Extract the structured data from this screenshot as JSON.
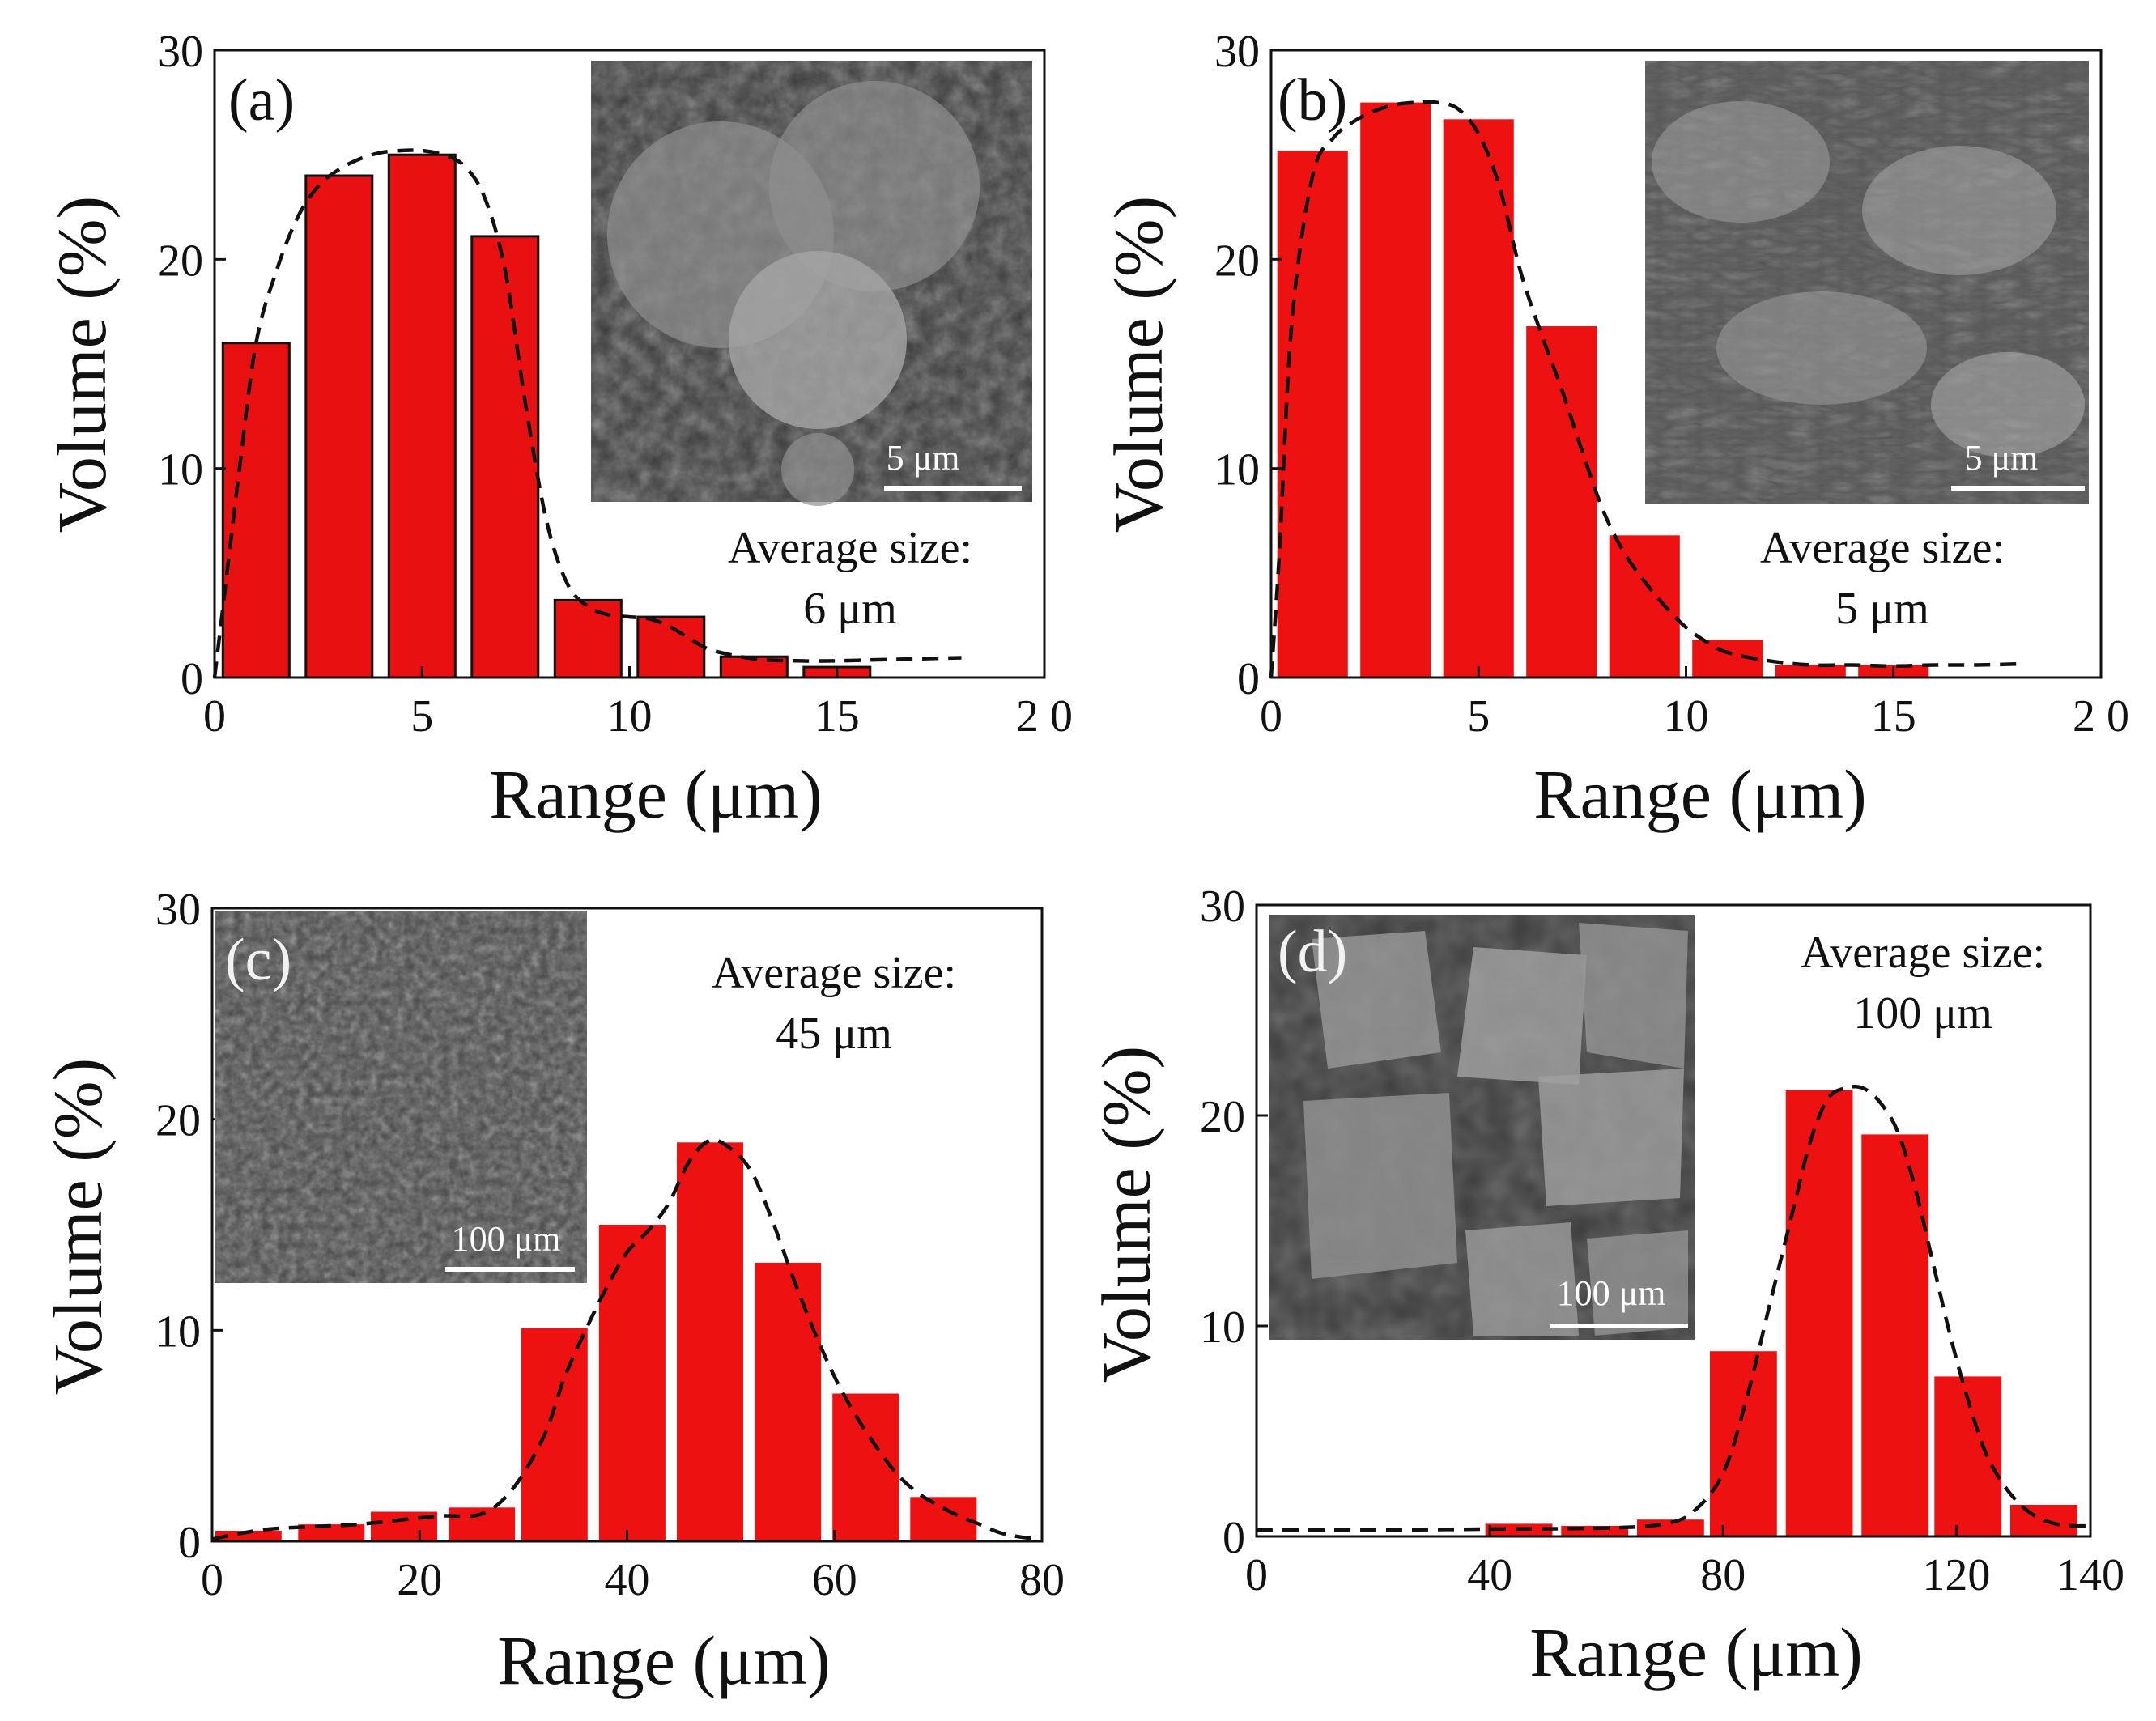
{
  "colors": {
    "bar_red": "#ee1111",
    "bar_red_outlined": "#e81010",
    "axis": "#111111",
    "inset_bg": "#4a4a4a",
    "inset_text": "#ffffff"
  },
  "chart_data": [
    {
      "type": "bar",
      "panel_label": "(a)",
      "xlabel": "Range (μm)",
      "ylabel": "Volume (%)",
      "xlim": [
        0,
        20
      ],
      "ylim": [
        0,
        30
      ],
      "xticks": [
        0,
        5,
        10,
        15,
        20
      ],
      "xtick_labels": [
        "0",
        "5",
        "10",
        "15",
        "2 0"
      ],
      "yticks": [
        0,
        10,
        20,
        30
      ],
      "bar_outline": true,
      "bar_width": 1.6,
      "bars": [
        {
          "x": 1,
          "value": 16
        },
        {
          "x": 3,
          "value": 24
        },
        {
          "x": 5,
          "value": 25
        },
        {
          "x": 7,
          "value": 21.1
        },
        {
          "x": 9,
          "value": 3.7
        },
        {
          "x": 11,
          "value": 2.9
        },
        {
          "x": 13,
          "value": 1.0
        },
        {
          "x": 15,
          "value": 0.5
        }
      ],
      "fit": {
        "x": [
          0,
          0.3,
          0.6,
          1,
          1.5,
          2,
          2.5,
          3,
          3.5,
          4,
          4.5,
          5,
          5.5,
          6,
          6.5,
          7,
          7.5,
          8,
          8.5,
          9,
          9.5,
          10,
          10.5,
          11,
          11.5,
          12,
          13,
          14,
          15,
          16,
          17,
          18
        ],
        "y": [
          0,
          5,
          10,
          16,
          19.5,
          22,
          23.5,
          24.3,
          24.8,
          25.1,
          25.2,
          25.2,
          25,
          24.5,
          23,
          19.5,
          13,
          7.5,
          4.5,
          3.4,
          3.0,
          2.9,
          2.8,
          2.4,
          1.8,
          1.3,
          0.9,
          0.8,
          0.8,
          0.85,
          0.9,
          0.95
        ]
      },
      "annotation": [
        "Average size:",
        "6 μm"
      ],
      "inset_scale_label": "5 μm"
    },
    {
      "type": "bar",
      "panel_label": "(b)",
      "xlabel": "Range (μm)",
      "ylabel": "Volume (%)",
      "xlim": [
        0,
        20
      ],
      "ylim": [
        0,
        30
      ],
      "xticks": [
        0,
        5,
        10,
        15,
        20
      ],
      "xtick_labels": [
        "0",
        "5",
        "10",
        "15",
        "2 0"
      ],
      "yticks": [
        0,
        10,
        20,
        30
      ],
      "bar_outline": false,
      "bar_width": 1.7,
      "bars": [
        {
          "x": 1,
          "value": 25.2
        },
        {
          "x": 3,
          "value": 27.5
        },
        {
          "x": 5,
          "value": 26.7
        },
        {
          "x": 7,
          "value": 16.8
        },
        {
          "x": 9,
          "value": 6.8
        },
        {
          "x": 11,
          "value": 1.8
        },
        {
          "x": 13,
          "value": 0.6
        },
        {
          "x": 15,
          "value": 0.6
        }
      ],
      "fit": {
        "x": [
          0,
          0.2,
          0.5,
          1,
          1.5,
          2,
          2.5,
          3,
          3.5,
          4,
          4.5,
          5,
          5.5,
          6,
          6.5,
          7,
          7.5,
          8,
          8.5,
          9,
          9.5,
          10,
          10.5,
          11,
          12,
          13,
          14,
          15,
          16,
          17,
          18
        ],
        "y": [
          0,
          6,
          17,
          24,
          25.8,
          26.6,
          27.1,
          27.4,
          27.5,
          27.5,
          27.2,
          26,
          23.5,
          19.5,
          16.5,
          13.8,
          10.8,
          8.0,
          6.0,
          4.6,
          3.4,
          2.4,
          1.7,
          1.2,
          0.8,
          0.6,
          0.6,
          0.55,
          0.6,
          0.6,
          0.65
        ]
      },
      "annotation": [
        "Average size:",
        "5 μm"
      ],
      "inset_scale_label": "5 μm"
    },
    {
      "type": "bar",
      "panel_label": "(c)",
      "xlabel": "Range (μm)",
      "ylabel": "Volume (%)",
      "xlim": [
        0,
        80
      ],
      "ylim": [
        0,
        30
      ],
      "xticks": [
        0,
        20,
        40,
        60,
        80
      ],
      "xtick_labels": [
        "0",
        "20",
        "40",
        "60",
        "80"
      ],
      "yticks": [
        0,
        10,
        20,
        30
      ],
      "bar_outline": false,
      "bar_width": 6.4,
      "bars": [
        {
          "x": 3.5,
          "value": 0.5
        },
        {
          "x": 11.5,
          "value": 0.8
        },
        {
          "x": 18.5,
          "value": 1.4
        },
        {
          "x": 26,
          "value": 1.6
        },
        {
          "x": 33,
          "value": 10.1
        },
        {
          "x": 40.5,
          "value": 15
        },
        {
          "x": 48,
          "value": 18.9
        },
        {
          "x": 55.5,
          "value": 13.2
        },
        {
          "x": 63,
          "value": 7
        },
        {
          "x": 70.5,
          "value": 2.1
        }
      ],
      "fit": {
        "x": [
          0,
          3,
          6,
          10,
          14,
          18,
          22,
          26,
          29,
          32,
          34,
          36,
          38,
          40,
          42,
          44,
          46,
          48,
          50,
          52,
          54,
          56,
          58,
          60,
          62,
          64,
          66,
          68,
          70,
          72,
          74,
          76,
          78,
          80
        ],
        "y": [
          0.1,
          0.4,
          0.6,
          0.7,
          0.8,
          1.0,
          1.2,
          1.3,
          2.5,
          5,
          7.8,
          10,
          12,
          13.7,
          14.7,
          16,
          18,
          19,
          18.6,
          17.5,
          15.2,
          12.5,
          10,
          7.8,
          6,
          4.5,
          3.2,
          2.3,
          1.7,
          1.2,
          0.8,
          0.4,
          0.2,
          0.1
        ]
      },
      "annotation": [
        "Average size:",
        "45 μm"
      ],
      "inset_scale_label": "100 μm"
    },
    {
      "type": "bar",
      "panel_label": "(d)",
      "xlabel": "Range (μm)",
      "ylabel": "Volume (%)",
      "xlim": [
        0,
        140
      ],
      "ylim": [
        0,
        30
      ],
      "xticks": [
        0,
        40,
        80,
        120,
        140
      ],
      "xtick_labels": [
        "0",
        "40",
        "80",
        "120",
        "140"
      ],
      "yticks": [
        0,
        10,
        20,
        30
      ],
      "bar_outline": false,
      "bar_width": 11.5,
      "bars": [
        {
          "x": 45,
          "value": 0.6
        },
        {
          "x": 58,
          "value": 0.5
        },
        {
          "x": 71,
          "value": 0.8
        },
        {
          "x": 83.5,
          "value": 8.8
        },
        {
          "x": 96.5,
          "value": 21.2
        },
        {
          "x": 109.5,
          "value": 19.1
        },
        {
          "x": 122,
          "value": 7.6
        },
        {
          "x": 135,
          "value": 1.5
        }
      ],
      "fit": {
        "x": [
          0,
          20,
          40,
          60,
          70,
          75,
          80,
          84,
          88,
          92,
          95,
          98,
          101,
          104,
          107,
          110,
          113,
          116,
          119,
          122,
          125,
          128,
          131,
          134,
          137,
          140,
          143
        ],
        "y": [
          0.3,
          0.3,
          0.35,
          0.4,
          0.6,
          1.2,
          3,
          6.5,
          11,
          15.5,
          18.8,
          20.8,
          21.3,
          21.3,
          20.6,
          19.2,
          16.5,
          13,
          9.5,
          6.5,
          4,
          2.5,
          1.5,
          0.9,
          0.6,
          0.5,
          0.5
        ]
      },
      "annotation": [
        "Average size:",
        "100 μm"
      ],
      "inset_scale_label": "100 μm"
    }
  ]
}
